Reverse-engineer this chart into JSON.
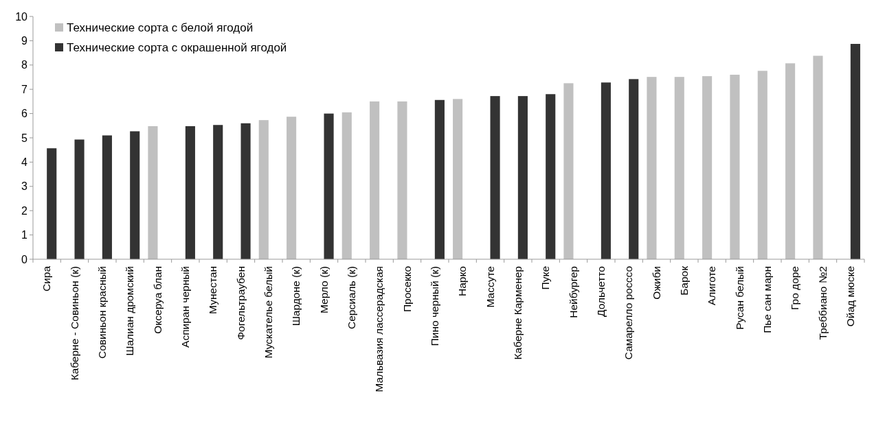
{
  "chart_data": {
    "type": "bar",
    "categories": [
      "Сира",
      "Каберне - Совиньон (к)",
      "Совиньон красный",
      "Шалиан дромский",
      "Оксеруа блан",
      "Аспиран черный",
      "Мунестан",
      "Фогельтраубен",
      "Мускательe белый",
      "Шардоне (к)",
      "Мерло (к)",
      "Серсиаль (к)",
      "Мальвазия лассерадская",
      "Просекко",
      "Пино черный (к)",
      "Нарко",
      "Массуте",
      "Каберне Карменер",
      "Пуке",
      "Нейбургер",
      "Дольчетто",
      "Самарелло росссо",
      "Ожиби",
      "Барок",
      "Алиготе",
      "Русан белый",
      "Пье сан марн",
      "Гро доре",
      "Треббиано №2",
      "Ойад мюске"
    ],
    "series": [
      {
        "name": "Технические сорта с белой ягодой",
        "color": "#c0c0c0",
        "values": [
          null,
          null,
          null,
          null,
          5.48,
          null,
          null,
          null,
          5.73,
          5.87,
          null,
          6.05,
          6.5,
          6.5,
          null,
          6.6,
          null,
          null,
          null,
          7.25,
          null,
          null,
          7.51,
          7.51,
          7.54,
          7.6,
          7.76,
          8.07,
          8.38,
          null
        ]
      },
      {
        "name": "Технические сорта с окрашенной ягодой",
        "color": "#333333",
        "values": [
          4.57,
          4.93,
          5.1,
          5.27,
          null,
          5.48,
          5.53,
          5.6,
          null,
          null,
          6.0,
          null,
          null,
          null,
          6.56,
          null,
          6.72,
          6.72,
          6.8,
          null,
          7.28,
          7.42,
          null,
          null,
          null,
          null,
          null,
          null,
          null,
          8.87
        ]
      }
    ],
    "ylim": [
      0,
      10
    ],
    "yticks": [
      0,
      1,
      2,
      3,
      4,
      5,
      6,
      7,
      8,
      9,
      10
    ],
    "legend": "top left"
  }
}
